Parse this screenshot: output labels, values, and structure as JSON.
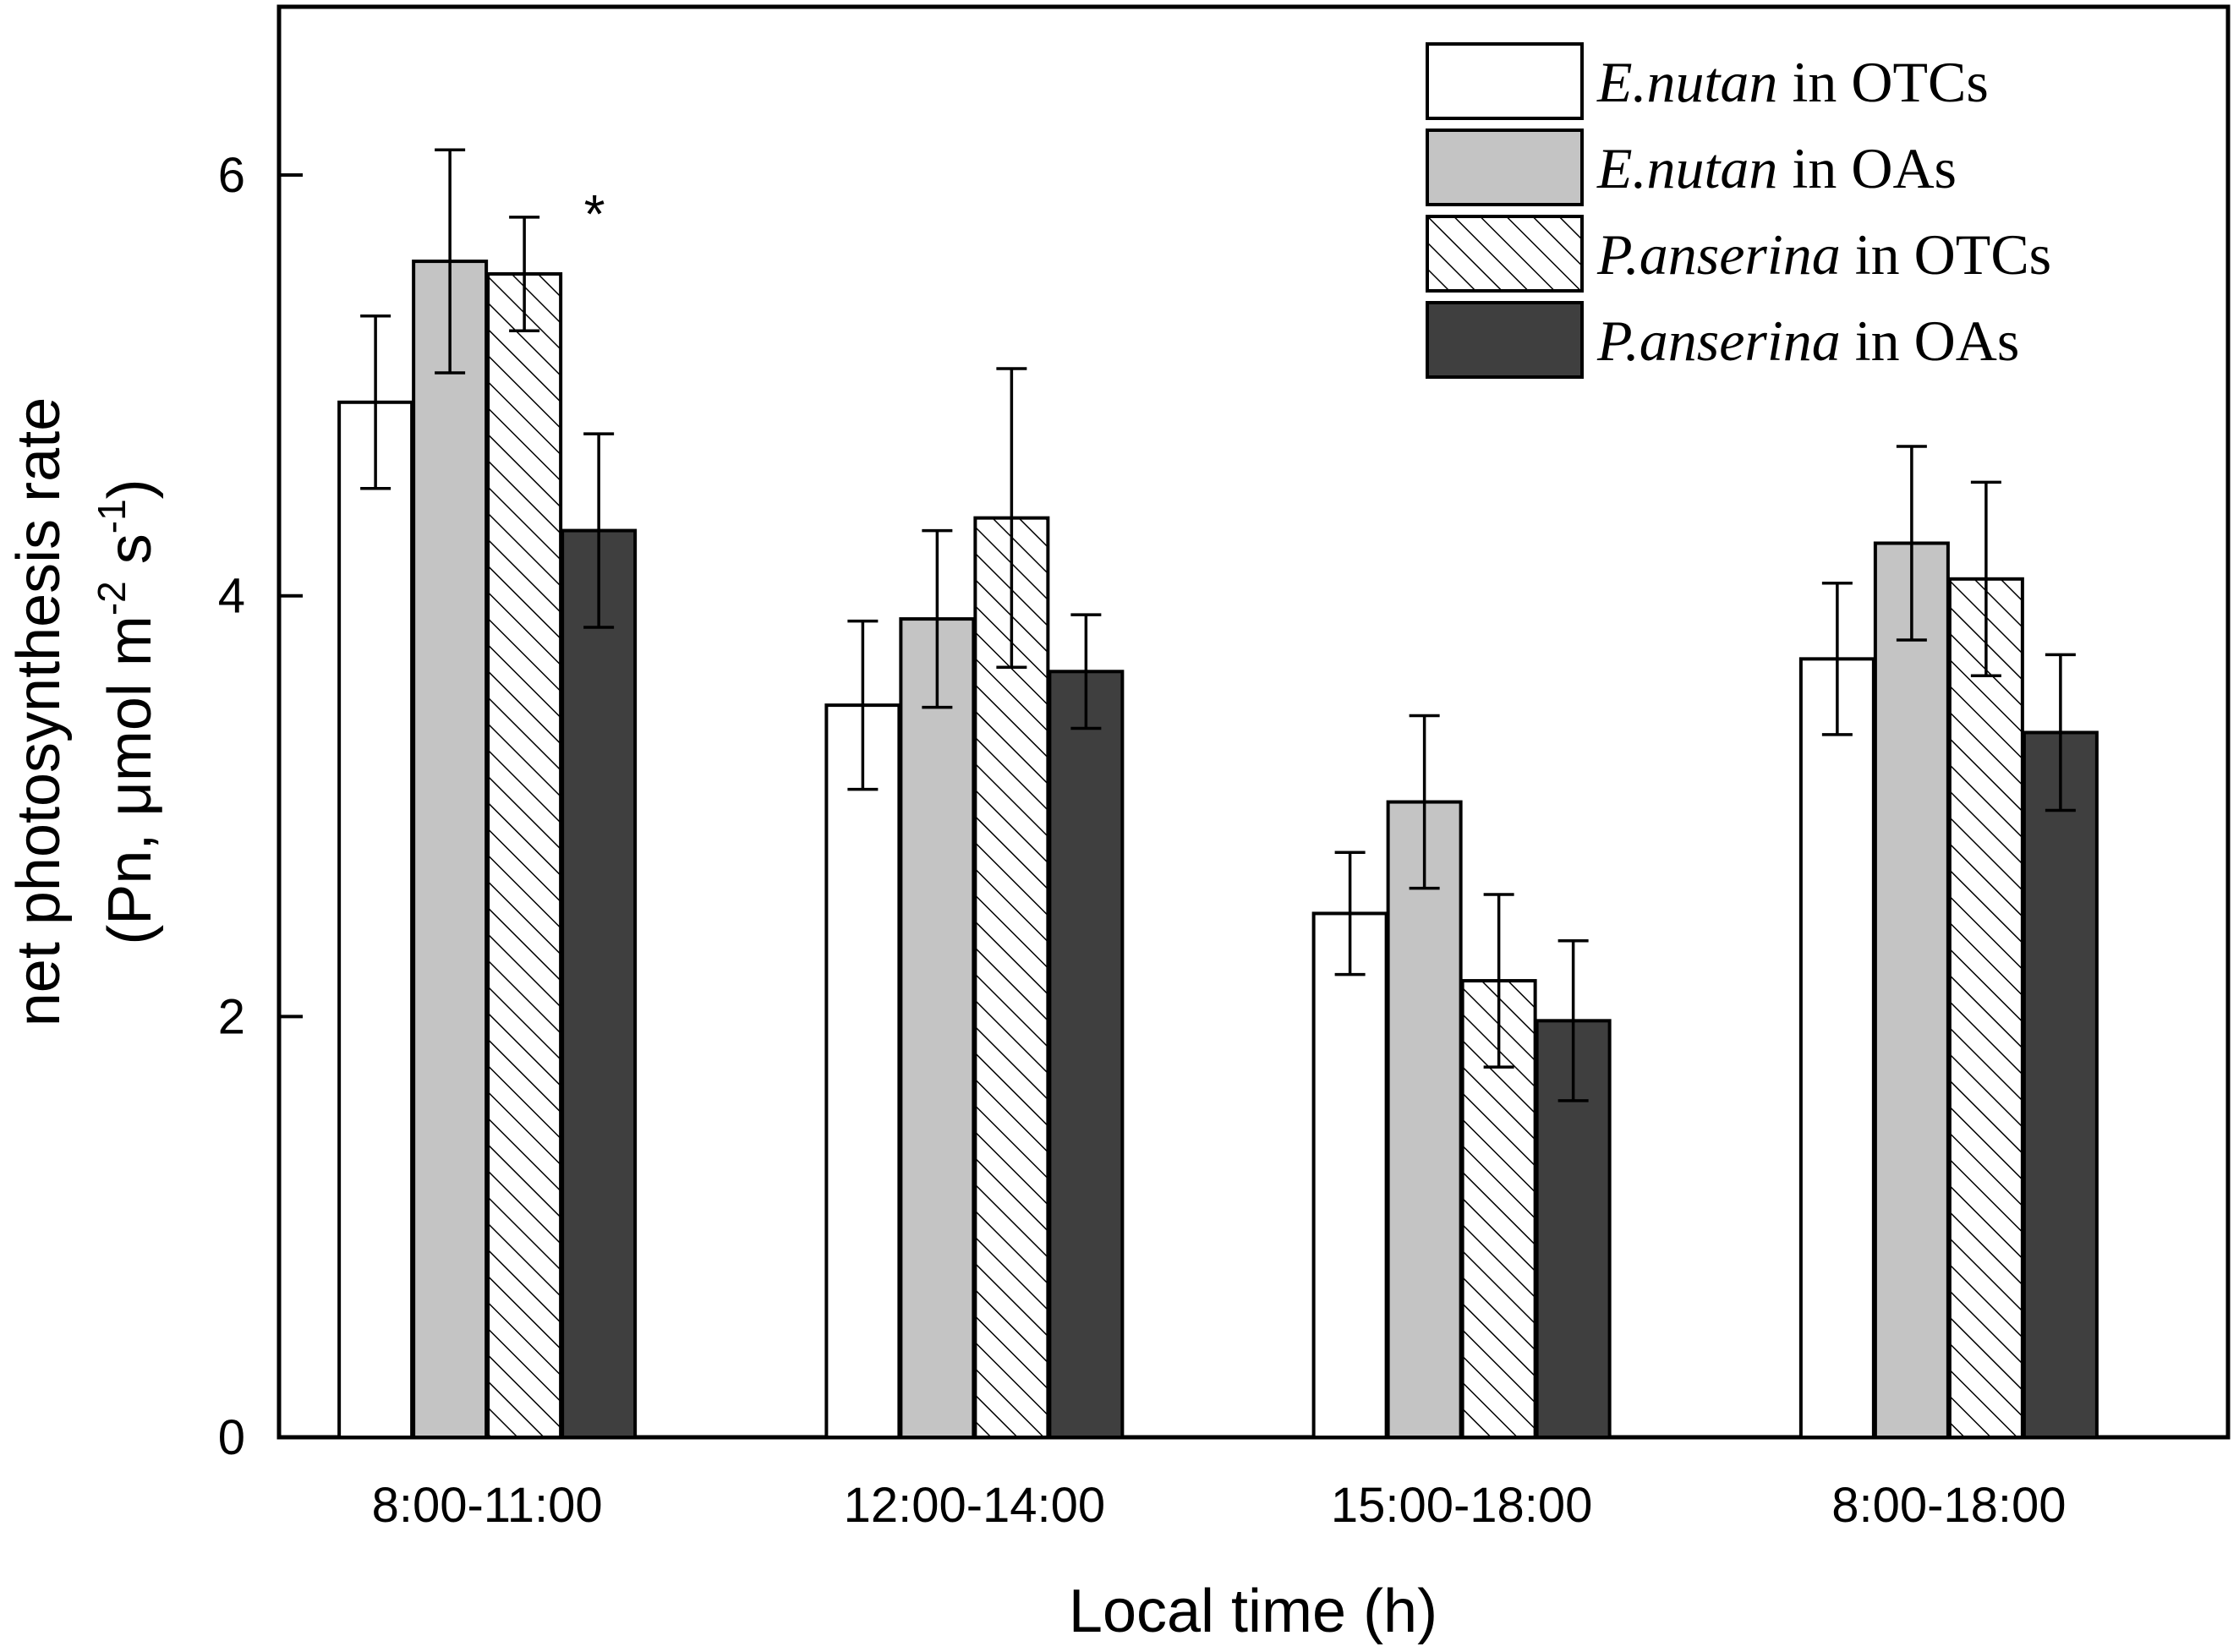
{
  "chart_data": {
    "type": "bar",
    "xlabel": "Local time (h)",
    "ylabel_line1": "net photosynthesis rate",
    "ylabel_line2_prefix": "(Pn, μmol m",
    "ylabel_sup1": "-2",
    "ylabel_mid": " s",
    "ylabel_sup2": "-1",
    "ylabel_suffix": ")",
    "ylim": [
      0,
      6.8
    ],
    "yticks": [
      0,
      2,
      4,
      6
    ],
    "grid": false,
    "legend_position": "top-right",
    "categories": [
      "8:00-11:00",
      "12:00-14:00",
      "15:00-18:00",
      "8:00-18:00"
    ],
    "series": [
      {
        "name": "E.nutan in OTCs",
        "species": "E.nutan",
        "site": " in OTCs",
        "fill": "#ffffff",
        "pattern": "none",
        "values": [
          4.92,
          3.48,
          2.49,
          3.7
        ],
        "errors": [
          0.41,
          0.4,
          0.29,
          0.36
        ]
      },
      {
        "name": "E.nutan in OAs",
        "species": "E.nutan",
        "site": " in OAs",
        "fill": "#c4c4c4",
        "pattern": "none",
        "values": [
          5.59,
          3.89,
          3.02,
          4.25
        ],
        "errors": [
          0.53,
          0.42,
          0.41,
          0.46
        ]
      },
      {
        "name": "P.anserina in OTCs",
        "species": "P.anserina",
        "site": " in OTCs",
        "fill": "#ffffff",
        "pattern": "hatch",
        "values": [
          5.53,
          4.37,
          2.17,
          4.08
        ],
        "errors": [
          0.27,
          0.71,
          0.41,
          0.46
        ]
      },
      {
        "name": "P.anserina in OAs",
        "species": "P.anserina",
        "site": " in OAs",
        "fill": "#3f3f3f",
        "pattern": "none",
        "values": [
          4.31,
          3.64,
          1.98,
          3.35
        ],
        "errors": [
          0.46,
          0.27,
          0.38,
          0.37
        ]
      }
    ],
    "annotations": [
      {
        "text": "*",
        "category": "8:00-11:00",
        "series": "P.anserina in OTCs"
      }
    ]
  }
}
